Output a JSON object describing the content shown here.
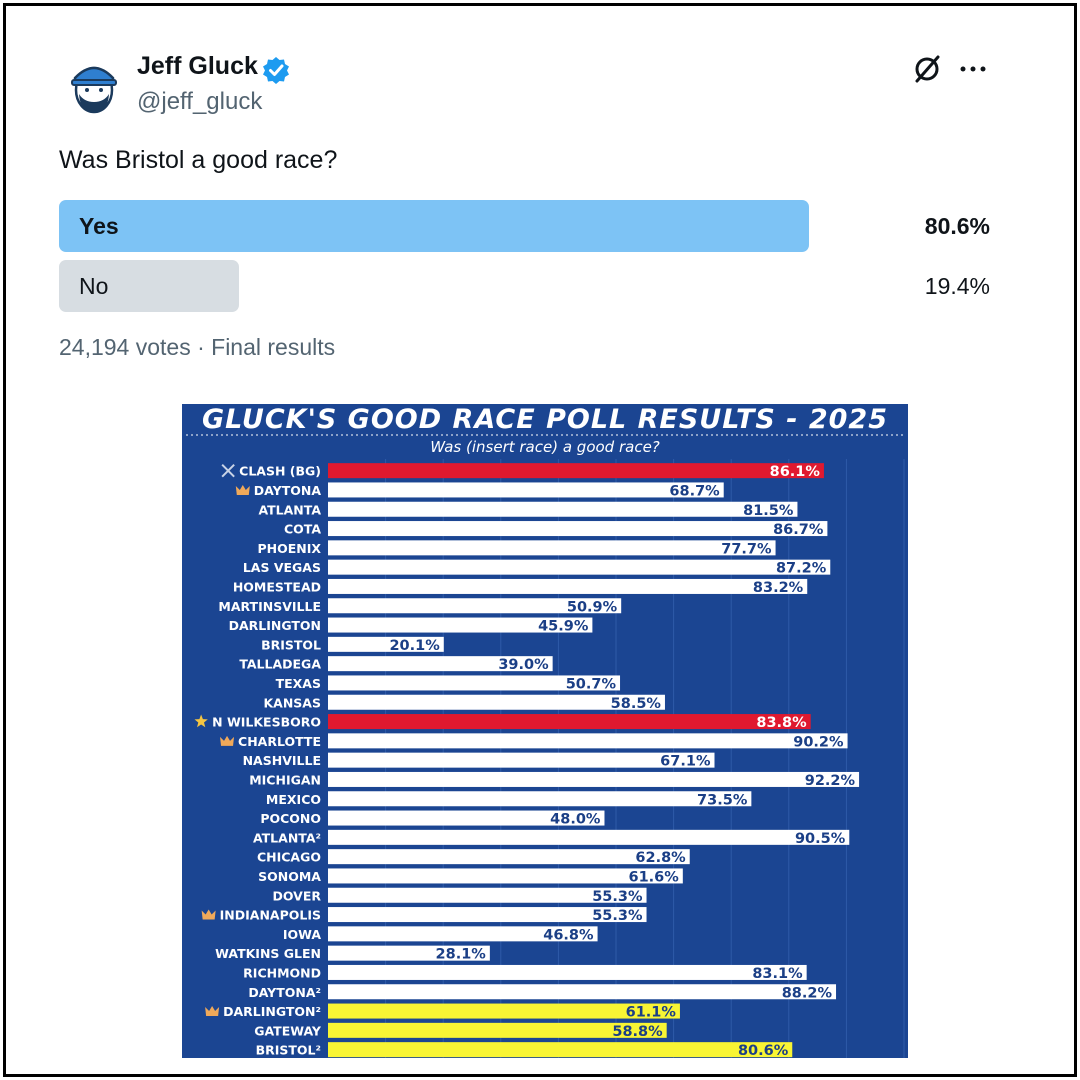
{
  "tweet": {
    "author_name": "Jeff Gluck",
    "author_handle": "@jeff_gluck",
    "question": "Was Bristol a good race?",
    "poll": {
      "options": [
        {
          "label": "Yes",
          "percent": "80.6%",
          "value": 80.6
        },
        {
          "label": "No",
          "percent": "19.4%",
          "value": 19.4
        }
      ],
      "meta": "24,194 votes · Final results"
    },
    "icons": {
      "avatar": "cartoon-avatar",
      "verified": "verified-badge-icon",
      "grok": "grok-icon",
      "more": "more-options-icon"
    },
    "colors": {
      "accent_blue": "#1d9bf0",
      "poll_winner": "#7dc3f5",
      "poll_other": "#d7dde2"
    }
  },
  "chart_data": {
    "type": "bar",
    "orientation": "horizontal",
    "title": "GLUCK'S GOOD RACE POLL RESULTS - 2025",
    "subtitle": "Was (insert race) a good race?",
    "xlim": [
      0,
      100
    ],
    "categories": [
      "CLASH (BG)",
      "DAYTONA",
      "ATLANTA",
      "COTA",
      "PHOENIX",
      "LAS VEGAS",
      "HOMESTEAD",
      "MARTINSVILLE",
      "DARLINGTON",
      "BRISTOL",
      "TALLADEGA",
      "TEXAS",
      "KANSAS",
      "N WILKESBORO",
      "CHARLOTTE",
      "NASHVILLE",
      "MICHIGAN",
      "MEXICO",
      "POCONO",
      "ATLANTA²",
      "CHICAGO",
      "SONOMA",
      "DOVER",
      "INDIANAPOLIS",
      "IOWA",
      "WATKINS GLEN",
      "RICHMOND",
      "DAYTONA²",
      "DARLINGTON²",
      "GATEWAY",
      "BRISTOL²"
    ],
    "values": [
      86.1,
      68.7,
      81.5,
      86.7,
      77.7,
      87.2,
      83.2,
      50.9,
      45.9,
      20.1,
      39.0,
      50.7,
      58.5,
      83.8,
      90.2,
      67.1,
      92.2,
      73.5,
      48.0,
      90.5,
      62.8,
      61.6,
      55.3,
      55.3,
      46.8,
      28.1,
      83.1,
      88.2,
      61.1,
      58.8,
      80.6
    ],
    "value_labels": [
      "86.1%",
      "68.7%",
      "81.5%",
      "86.7%",
      "77.7%",
      "87.2%",
      "83.2%",
      "50.9%",
      "45.9%",
      "20.1%",
      "39.0%",
      "50.7%",
      "58.5%",
      "83.8%",
      "90.2%",
      "67.1%",
      "92.2%",
      "73.5%",
      "48.0%",
      "90.5%",
      "62.8%",
      "61.6%",
      "55.3%",
      "55.3%",
      "46.8%",
      "28.1%",
      "83.1%",
      "88.2%",
      "61.1%",
      "58.8%",
      "80.6%"
    ],
    "bar_colors": [
      "red",
      "white",
      "white",
      "white",
      "white",
      "white",
      "white",
      "white",
      "white",
      "white",
      "white",
      "white",
      "white",
      "red",
      "white",
      "white",
      "white",
      "white",
      "white",
      "white",
      "white",
      "white",
      "white",
      "white",
      "white",
      "white",
      "white",
      "white",
      "yellow",
      "yellow",
      "yellow"
    ],
    "label_icons": [
      "crossed-swords-icon",
      "crown-icon",
      "",
      "",
      "",
      "",
      "",
      "",
      "",
      "",
      "",
      "",
      "",
      "star-icon",
      "crown-icon",
      "",
      "",
      "",
      "",
      "",
      "",
      "",
      "",
      "crown-icon",
      "",
      "",
      "",
      "",
      "crown-icon",
      "",
      ""
    ],
    "colors": {
      "background": "#1b4592",
      "red": "#e0192f",
      "white": "#ffffff",
      "yellow": "#f8f534",
      "text_dark": "#1b3f86"
    },
    "grid": true
  }
}
